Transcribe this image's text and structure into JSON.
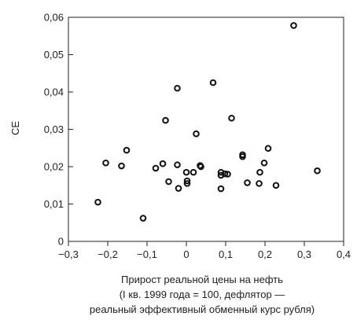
{
  "chart_data": {
    "type": "scatter",
    "title": "",
    "ylabel": "CE",
    "xlabel_lines": [
      "Прирост реальной цены на нефть",
      "(I кв. 1999 года = 100,  дефлятор —",
      "реальный эффективный обменный курс рубля)"
    ],
    "xlim": [
      -0.3,
      0.4
    ],
    "ylim": [
      0,
      0.06
    ],
    "x_ticks": [
      -0.3,
      -0.2,
      -0.1,
      0,
      0.1,
      0.2,
      0.3,
      0.4
    ],
    "x_tick_labels": [
      "−0,3",
      "−0,2",
      "−0,1",
      "0",
      "0,1",
      "0,2",
      "0,3",
      "0,4"
    ],
    "y_ticks": [
      0,
      0.01,
      0.02,
      0.03,
      0.04,
      0.05,
      0.06
    ],
    "y_tick_labels": [
      "0",
      "0,01",
      "0,02",
      "0,03",
      "0,04",
      "0,05",
      "0,06"
    ],
    "grid": false,
    "marker": "open-circle",
    "marker_color": "#111111",
    "points": [
      {
        "x": -0.225,
        "y": 0.0105
      },
      {
        "x": -0.205,
        "y": 0.021
      },
      {
        "x": -0.165,
        "y": 0.0202
      },
      {
        "x": -0.152,
        "y": 0.0244
      },
      {
        "x": -0.11,
        "y": 0.0062
      },
      {
        "x": -0.078,
        "y": 0.0196
      },
      {
        "x": -0.06,
        "y": 0.0208
      },
      {
        "x": -0.053,
        "y": 0.0324
      },
      {
        "x": -0.045,
        "y": 0.016
      },
      {
        "x": -0.023,
        "y": 0.041
      },
      {
        "x": -0.023,
        "y": 0.0205
      },
      {
        "x": -0.02,
        "y": 0.0142
      },
      {
        "x": 0.0,
        "y": 0.0185
      },
      {
        "x": 0.002,
        "y": 0.0162
      },
      {
        "x": 0.002,
        "y": 0.0155
      },
      {
        "x": 0.018,
        "y": 0.0185
      },
      {
        "x": 0.025,
        "y": 0.0288
      },
      {
        "x": 0.035,
        "y": 0.0203
      },
      {
        "x": 0.037,
        "y": 0.02
      },
      {
        "x": 0.068,
        "y": 0.0425
      },
      {
        "x": 0.088,
        "y": 0.0185
      },
      {
        "x": 0.088,
        "y": 0.0177
      },
      {
        "x": 0.088,
        "y": 0.0141
      },
      {
        "x": 0.098,
        "y": 0.0181
      },
      {
        "x": 0.105,
        "y": 0.018
      },
      {
        "x": 0.115,
        "y": 0.033
      },
      {
        "x": 0.143,
        "y": 0.0232
      },
      {
        "x": 0.143,
        "y": 0.0227
      },
      {
        "x": 0.155,
        "y": 0.0157
      },
      {
        "x": 0.185,
        "y": 0.0155
      },
      {
        "x": 0.187,
        "y": 0.0185
      },
      {
        "x": 0.198,
        "y": 0.021
      },
      {
        "x": 0.208,
        "y": 0.0249
      },
      {
        "x": 0.228,
        "y": 0.015
      },
      {
        "x": 0.273,
        "y": 0.0578
      },
      {
        "x": 0.333,
        "y": 0.0189
      }
    ]
  }
}
